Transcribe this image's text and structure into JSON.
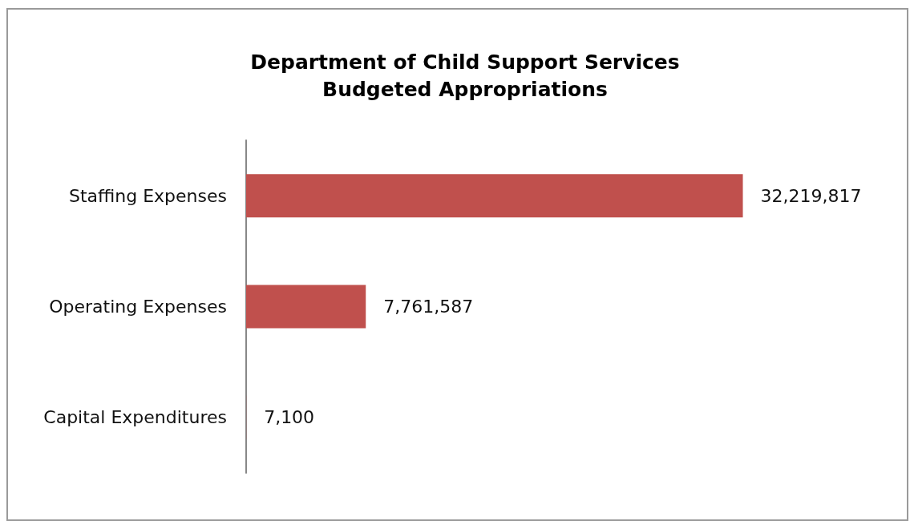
{
  "chart_data": {
    "type": "bar",
    "orientation": "horizontal",
    "title": "Department of Child Support Services\nBudgeted Appropriations",
    "categories": [
      "Staffing Expenses",
      "Operating Expenses",
      "Capital Expenditures"
    ],
    "values": [
      32219817,
      7761587,
      7100
    ],
    "value_labels": [
      "32,219,817",
      "7,761,587",
      "7,100"
    ],
    "color": "#c0504d"
  }
}
